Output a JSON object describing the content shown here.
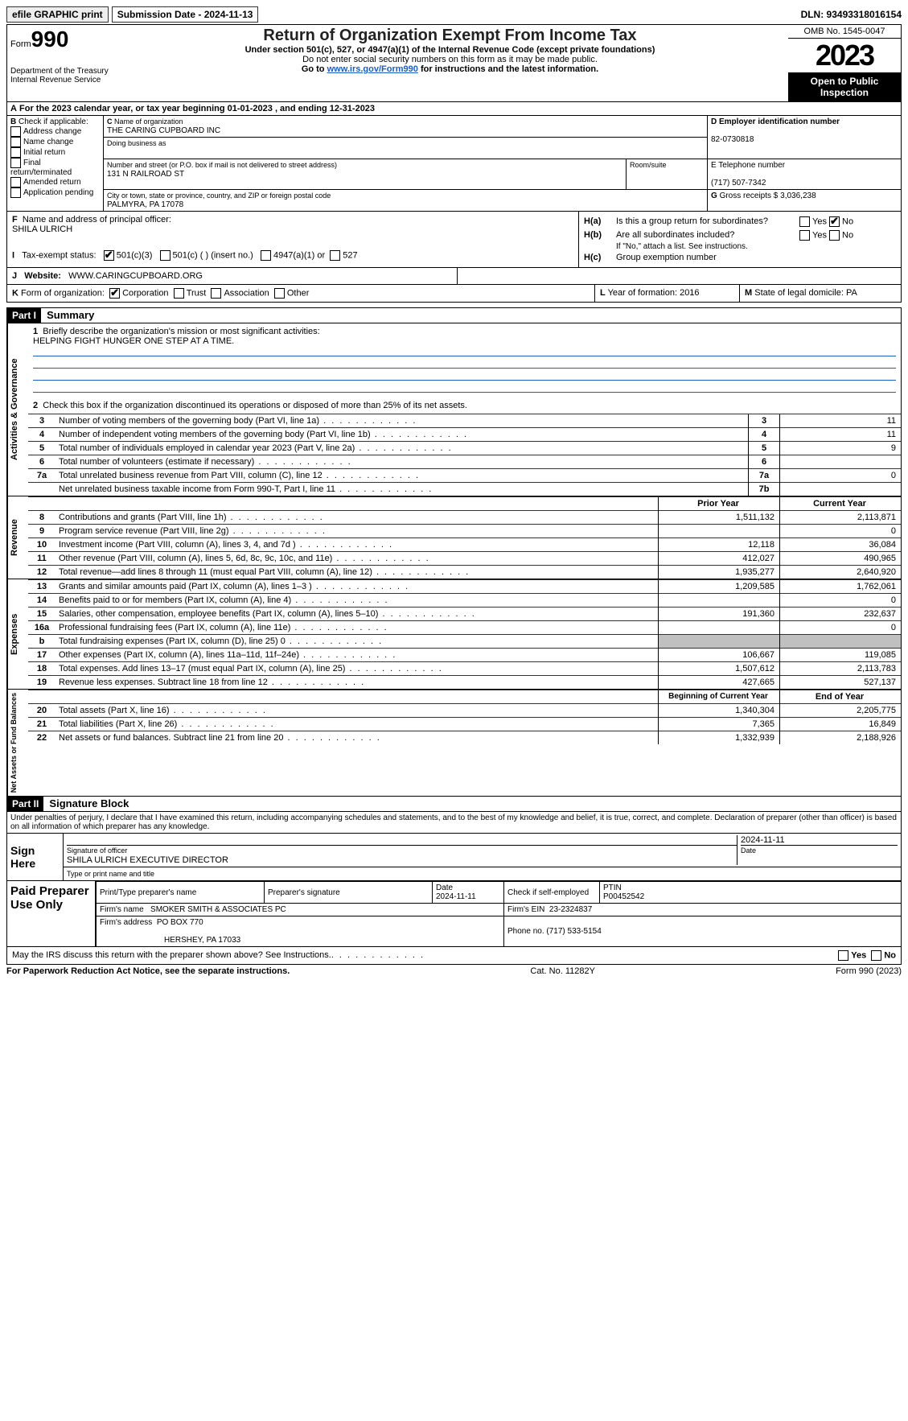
{
  "topbar": {
    "efile": "efile GRAPHIC print",
    "submission": "Submission Date - 2024-11-13",
    "dln": "DLN: 93493318016154"
  },
  "header": {
    "form_word": "Form",
    "form_num": "990",
    "title": "Return of Organization Exempt From Income Tax",
    "sub1": "Under section 501(c), 527, or 4947(a)(1) of the Internal Revenue Code (except private foundations)",
    "sub2": "Do not enter social security numbers on this form as it may be made public.",
    "sub3_pre": "Go to ",
    "sub3_link": "www.irs.gov/Form990",
    "sub3_post": " for instructions and the latest information.",
    "dept": "Department of the Treasury\nInternal Revenue Service",
    "omb": "OMB No. 1545-0047",
    "year": "2023",
    "open": "Open to Public Inspection"
  },
  "sectionA": "For the 2023 calendar year, or tax year beginning 01-01-2023   , and ending 12-31-2023",
  "boxB": {
    "label": "Check if applicable:",
    "opts": [
      "Address change",
      "Name change",
      "Initial return",
      "Final return/terminated",
      "Amended return",
      "Application pending"
    ]
  },
  "boxC": {
    "name_lbl": "Name of organization",
    "name": "THE CARING CUPBOARD INC",
    "dba_lbl": "Doing business as",
    "street_lbl": "Number and street (or P.O. box if mail is not delivered to street address)",
    "room_lbl": "Room/suite",
    "street": "131 N RAILROAD ST",
    "city_lbl": "City or town, state or province, country, and ZIP or foreign postal code",
    "city": "PALMYRA, PA  17078"
  },
  "boxD": {
    "lbl": "D Employer identification number",
    "val": "82-0730818"
  },
  "boxE": {
    "lbl": "E Telephone number",
    "val": "(717) 507-7342"
  },
  "boxG": {
    "lbl": "G",
    "txt": "Gross receipts $",
    "val": "3,036,238"
  },
  "boxF": {
    "lbl": "Name and address of principal officer:",
    "val": "SHILA ULRICH"
  },
  "boxH": {
    "a": "Is this a group return for subordinates?",
    "b": "Are all subordinates included?",
    "b2": "If \"No,\" attach a list. See instructions.",
    "c": "Group exemption number",
    "yes": "Yes",
    "no": "No",
    "a_no_checked": true
  },
  "rowI": {
    "lbl": "Tax-exempt status:",
    "opts": [
      "501(c)(3)",
      "501(c) (  ) (insert no.)",
      "4947(a)(1) or",
      "527"
    ],
    "checked": 0
  },
  "rowJ": {
    "lbl": "Website:",
    "val": "WWW.CARINGCUPBOARD.ORG"
  },
  "rowK": {
    "lbl": "Form of organization:",
    "opts": [
      "Corporation",
      "Trust",
      "Association",
      "Other"
    ],
    "checked": 0,
    "L": "Year of formation: 2016",
    "M": "State of legal domicile: PA"
  },
  "part1": {
    "hdr": "Part I",
    "title": "Summary",
    "l1_lbl": "Briefly describe the organization's mission or most significant activities:",
    "l1_val": "HELPING FIGHT HUNGER ONE STEP AT A TIME.",
    "l2": "Check this box      if the organization discontinued its operations or disposed of more than 25% of its net assets.",
    "rows_gov": [
      {
        "n": "3",
        "t": "Number of voting members of the governing body (Part VI, line 1a)",
        "b": "3",
        "v": "11"
      },
      {
        "n": "4",
        "t": "Number of independent voting members of the governing body (Part VI, line 1b)",
        "b": "4",
        "v": "11"
      },
      {
        "n": "5",
        "t": "Total number of individuals employed in calendar year 2023 (Part V, line 2a)",
        "b": "5",
        "v": "9"
      },
      {
        "n": "6",
        "t": "Total number of volunteers (estimate if necessary)",
        "b": "6",
        "v": ""
      },
      {
        "n": "7a",
        "t": "Total unrelated business revenue from Part VIII, column (C), line 12",
        "b": "7a",
        "v": "0"
      },
      {
        "n": "",
        "t": "Net unrelated business taxable income from Form 990-T, Part I, line 11",
        "b": "7b",
        "v": ""
      }
    ],
    "col_hdr_prior": "Prior Year",
    "col_hdr_curr": "Current Year",
    "rows_rev": [
      {
        "n": "8",
        "t": "Contributions and grants (Part VIII, line 1h)",
        "p": "1,511,132",
        "c": "2,113,871"
      },
      {
        "n": "9",
        "t": "Program service revenue (Part VIII, line 2g)",
        "p": "",
        "c": "0"
      },
      {
        "n": "10",
        "t": "Investment income (Part VIII, column (A), lines 3, 4, and 7d )",
        "p": "12,118",
        "c": "36,084"
      },
      {
        "n": "11",
        "t": "Other revenue (Part VIII, column (A), lines 5, 6d, 8c, 9c, 10c, and 11e)",
        "p": "412,027",
        "c": "490,965"
      },
      {
        "n": "12",
        "t": "Total revenue—add lines 8 through 11 (must equal Part VIII, column (A), line 12)",
        "p": "1,935,277",
        "c": "2,640,920"
      }
    ],
    "rows_exp": [
      {
        "n": "13",
        "t": "Grants and similar amounts paid (Part IX, column (A), lines 1–3 )",
        "p": "1,209,585",
        "c": "1,762,061"
      },
      {
        "n": "14",
        "t": "Benefits paid to or for members (Part IX, column (A), line 4)",
        "p": "",
        "c": "0"
      },
      {
        "n": "15",
        "t": "Salaries, other compensation, employee benefits (Part IX, column (A), lines 5–10)",
        "p": "191,360",
        "c": "232,637"
      },
      {
        "n": "16a",
        "t": "Professional fundraising fees (Part IX, column (A), line 11e)",
        "p": "",
        "c": "0"
      },
      {
        "n": "b",
        "t": "Total fundraising expenses (Part IX, column (D), line 25) 0",
        "p": "GREY",
        "c": "GREY"
      },
      {
        "n": "17",
        "t": "Other expenses (Part IX, column (A), lines 11a–11d, 11f–24e)",
        "p": "106,667",
        "c": "119,085"
      },
      {
        "n": "18",
        "t": "Total expenses. Add lines 13–17 (must equal Part IX, column (A), line 25)",
        "p": "1,507,612",
        "c": "2,113,783"
      },
      {
        "n": "19",
        "t": "Revenue less expenses. Subtract line 18 from line 12",
        "p": "427,665",
        "c": "527,137"
      }
    ],
    "col_hdr_beg": "Beginning of Current Year",
    "col_hdr_end": "End of Year",
    "rows_net": [
      {
        "n": "20",
        "t": "Total assets (Part X, line 16)",
        "p": "1,340,304",
        "c": "2,205,775"
      },
      {
        "n": "21",
        "t": "Total liabilities (Part X, line 26)",
        "p": "7,365",
        "c": "16,849"
      },
      {
        "n": "22",
        "t": "Net assets or fund balances. Subtract line 21 from line 20",
        "p": "1,332,939",
        "c": "2,188,926"
      }
    ],
    "tabs": [
      "Activities & Governance",
      "Revenue",
      "Expenses",
      "Net Assets or Fund Balances"
    ]
  },
  "part2": {
    "hdr": "Part II",
    "title": "Signature Block",
    "perjury": "Under penalties of perjury, I declare that I have examined this return, including accompanying schedules and statements, and to the best of my knowledge and belief, it is true, correct, and complete. Declaration of preparer (other than officer) is based on all information of which preparer has any knowledge.",
    "sign_here": "Sign Here",
    "sig_off_lbl": "Signature of officer",
    "sig_date_lbl": "Date",
    "sig_date": "2024-11-11",
    "officer": "SHILA ULRICH  EXECUTIVE DIRECTOR",
    "type_lbl": "Type or print name and title",
    "paid": "Paid Preparer Use Only",
    "prep_name_lbl": "Print/Type preparer's name",
    "prep_sig_lbl": "Preparer's signature",
    "prep_date_lbl": "Date",
    "prep_date": "2024-11-11",
    "prep_self": "Check       if self-employed",
    "ptin_lbl": "PTIN",
    "ptin": "P00452542",
    "firm_name_lbl": "Firm's name",
    "firm_name": "SMOKER SMITH & ASSOCIATES PC",
    "firm_ein_lbl": "Firm's EIN",
    "firm_ein": "23-2324837",
    "firm_addr_lbl": "Firm's address",
    "firm_addr1": "PO BOX 770",
    "firm_addr2": "HERSHEY, PA  17033",
    "phone_lbl": "Phone no.",
    "phone": "(717) 533-5154",
    "discuss": "May the IRS discuss this return with the preparer shown above? See Instructions."
  },
  "footer": {
    "l": "For Paperwork Reduction Act Notice, see the separate instructions.",
    "c": "Cat. No. 11282Y",
    "r": "Form 990 (2023)"
  }
}
